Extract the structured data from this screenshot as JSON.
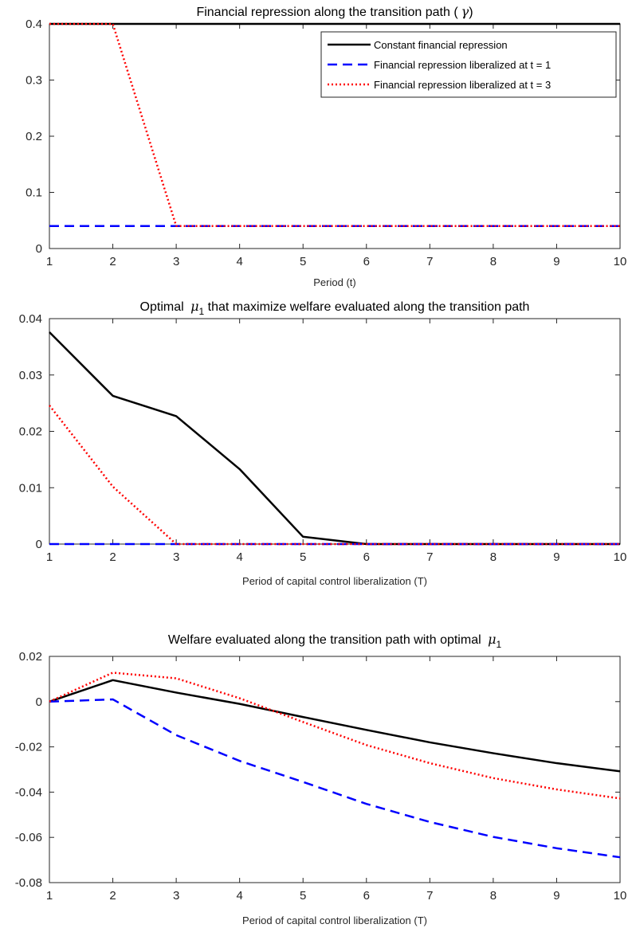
{
  "series_styles": [
    {
      "color": "#000000",
      "dash": "none",
      "width": 2.5
    },
    {
      "color": "#0000ff",
      "dash": "12,7",
      "width": 2.5
    },
    {
      "color": "#ff0000",
      "dash": "2,3",
      "width": 2.5
    }
  ],
  "chart_data": [
    {
      "type": "line",
      "title": "Financial repression along the transition path (",
      "title_symbol": "γ",
      "title_suffix": ")",
      "xlabel": "Period (t)",
      "ylabel": "",
      "xlim": [
        1,
        10
      ],
      "ylim": [
        0,
        0.4
      ],
      "xticks": [
        "1",
        "2",
        "3",
        "4",
        "5",
        "6",
        "7",
        "8",
        "9",
        "10"
      ],
      "yticks": [
        "0",
        "0.1",
        "0.2",
        "0.3",
        "0.4"
      ],
      "legend_position": "top-right",
      "x": [
        1,
        2,
        3,
        4,
        5,
        6,
        7,
        8,
        9,
        10
      ],
      "series": [
        {
          "name": "Constant financial repression",
          "values": [
            0.4,
            0.4,
            0.4,
            0.4,
            0.4,
            0.4,
            0.4,
            0.4,
            0.4,
            0.4
          ]
        },
        {
          "name": "Financial repression liberalized at t = 1",
          "values": [
            0.04,
            0.04,
            0.04,
            0.04,
            0.04,
            0.04,
            0.04,
            0.04,
            0.04,
            0.04
          ]
        },
        {
          "name": "Financial repression liberalized at t = 3",
          "values": [
            0.4,
            0.4,
            0.04,
            0.04,
            0.04,
            0.04,
            0.04,
            0.04,
            0.04,
            0.04
          ]
        }
      ]
    },
    {
      "type": "line",
      "title": "Optimal ",
      "title_symbol": "μ",
      "title_sub": "1",
      "title_suffix": " that maximize welfare evaluated along the transition path",
      "xlabel": "Period of capital control liberalization (T)",
      "ylabel": "",
      "xlim": [
        1,
        10
      ],
      "ylim": [
        0,
        0.04
      ],
      "xticks": [
        "1",
        "2",
        "3",
        "4",
        "5",
        "6",
        "7",
        "8",
        "9",
        "10"
      ],
      "yticks": [
        "0",
        "0.01",
        "0.02",
        "0.03",
        "0.04"
      ],
      "x": [
        1,
        2,
        3,
        4,
        5,
        6,
        7,
        8,
        9,
        10
      ],
      "series": [
        {
          "values": [
            0.0376,
            0.0263,
            0.0227,
            0.0133,
            0.0013,
            0.0,
            0.0,
            0.0,
            0.0,
            0.0
          ]
        },
        {
          "values": [
            0.0,
            0.0,
            0.0,
            0.0,
            0.0,
            0.0,
            0.0,
            0.0,
            0.0,
            0.0
          ]
        },
        {
          "values": [
            0.0246,
            0.0102,
            0.0,
            0.0,
            0.0,
            0.0,
            0.0,
            0.0,
            0.0,
            0.0
          ]
        }
      ]
    },
    {
      "type": "line",
      "title": "Welfare evaluated along the transition path with optimal ",
      "title_symbol": "μ",
      "title_sub": "1",
      "title_suffix": "",
      "xlabel": "Period of capital control liberalization (T)",
      "ylabel": "",
      "xlim": [
        1,
        10
      ],
      "ylim": [
        -0.08,
        0.02
      ],
      "xticks": [
        "1",
        "2",
        "3",
        "4",
        "5",
        "6",
        "7",
        "8",
        "9",
        "10"
      ],
      "yticks": [
        "-0.08",
        "-0.06",
        "-0.04",
        "-0.02",
        "0",
        "0.02"
      ],
      "x": [
        1,
        2,
        3,
        4,
        5,
        6,
        7,
        8,
        9,
        10
      ],
      "series": [
        {
          "values": [
            0.0,
            0.0095,
            0.004,
            -0.001,
            -0.0068,
            -0.0125,
            -0.018,
            -0.0228,
            -0.0272,
            -0.0308
          ]
        },
        {
          "values": [
            0.0,
            0.001,
            -0.0148,
            -0.0262,
            -0.0355,
            -0.0452,
            -0.0532,
            -0.0598,
            -0.0648,
            -0.0688
          ]
        },
        {
          "values": [
            0.0,
            0.0128,
            0.0103,
            0.0015,
            -0.009,
            -0.0192,
            -0.0272,
            -0.0338,
            -0.0388,
            -0.0428
          ]
        }
      ]
    }
  ]
}
